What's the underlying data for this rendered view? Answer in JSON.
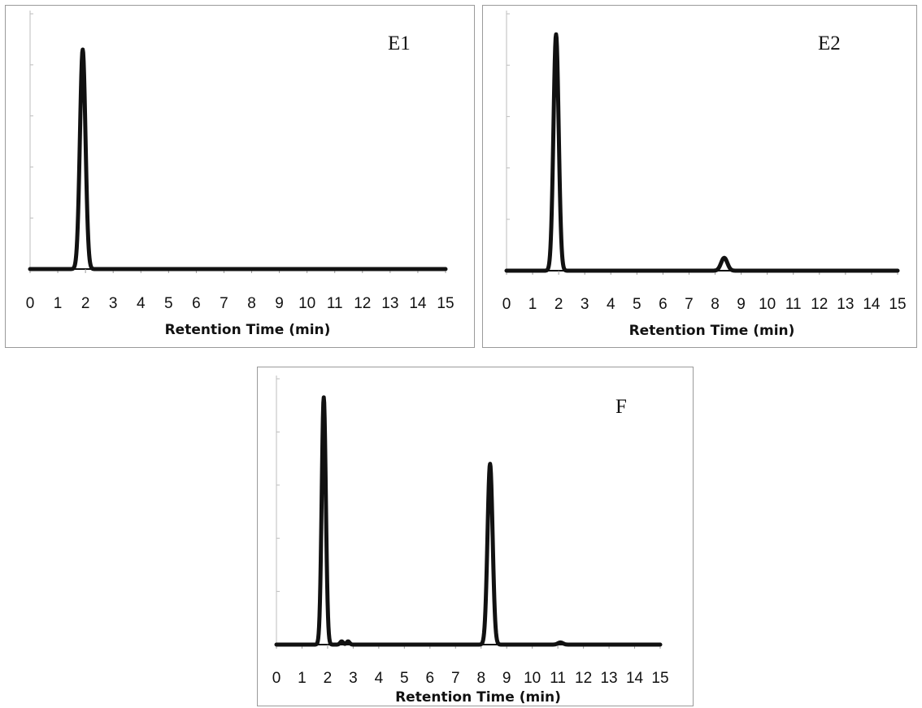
{
  "chart_data": [
    {
      "type": "line",
      "title": "E1",
      "xlabel": "Retention Time (min)",
      "ylabel": "",
      "xlim": [
        0,
        15
      ],
      "ylim": [
        0,
        1
      ],
      "xticks": [
        0,
        1,
        2,
        3,
        4,
        5,
        6,
        7,
        8,
        9,
        10,
        11,
        12,
        13,
        14,
        15
      ],
      "grid": false,
      "peaks": [
        {
          "retention_time": 1.9,
          "height": 0.86,
          "width": 0.1
        }
      ]
    },
    {
      "type": "line",
      "title": "E2",
      "xlabel": "Retention Time (min)",
      "ylabel": "",
      "xlim": [
        0,
        15
      ],
      "ylim": [
        0,
        1
      ],
      "xticks": [
        0,
        1,
        2,
        3,
        4,
        5,
        6,
        7,
        8,
        9,
        10,
        11,
        12,
        13,
        14,
        15
      ],
      "grid": false,
      "peaks": [
        {
          "retention_time": 1.9,
          "height": 0.92,
          "width": 0.1
        },
        {
          "retention_time": 8.35,
          "height": 0.05,
          "width": 0.12
        }
      ]
    },
    {
      "type": "line",
      "title": "F",
      "xlabel": "Retention Time (min)",
      "ylabel": "",
      "xlim": [
        0,
        15
      ],
      "ylim": [
        0,
        1
      ],
      "xticks": [
        0,
        1,
        2,
        3,
        4,
        5,
        6,
        7,
        8,
        9,
        10,
        11,
        12,
        13,
        14,
        15
      ],
      "grid": false,
      "peaks": [
        {
          "retention_time": 1.85,
          "height": 0.93,
          "width": 0.08
        },
        {
          "retention_time": 2.55,
          "height": 0.012,
          "width": 0.06
        },
        {
          "retention_time": 2.8,
          "height": 0.012,
          "width": 0.06
        },
        {
          "retention_time": 8.35,
          "height": 0.68,
          "width": 0.1
        },
        {
          "retention_time": 11.1,
          "height": 0.008,
          "width": 0.1
        }
      ]
    }
  ]
}
